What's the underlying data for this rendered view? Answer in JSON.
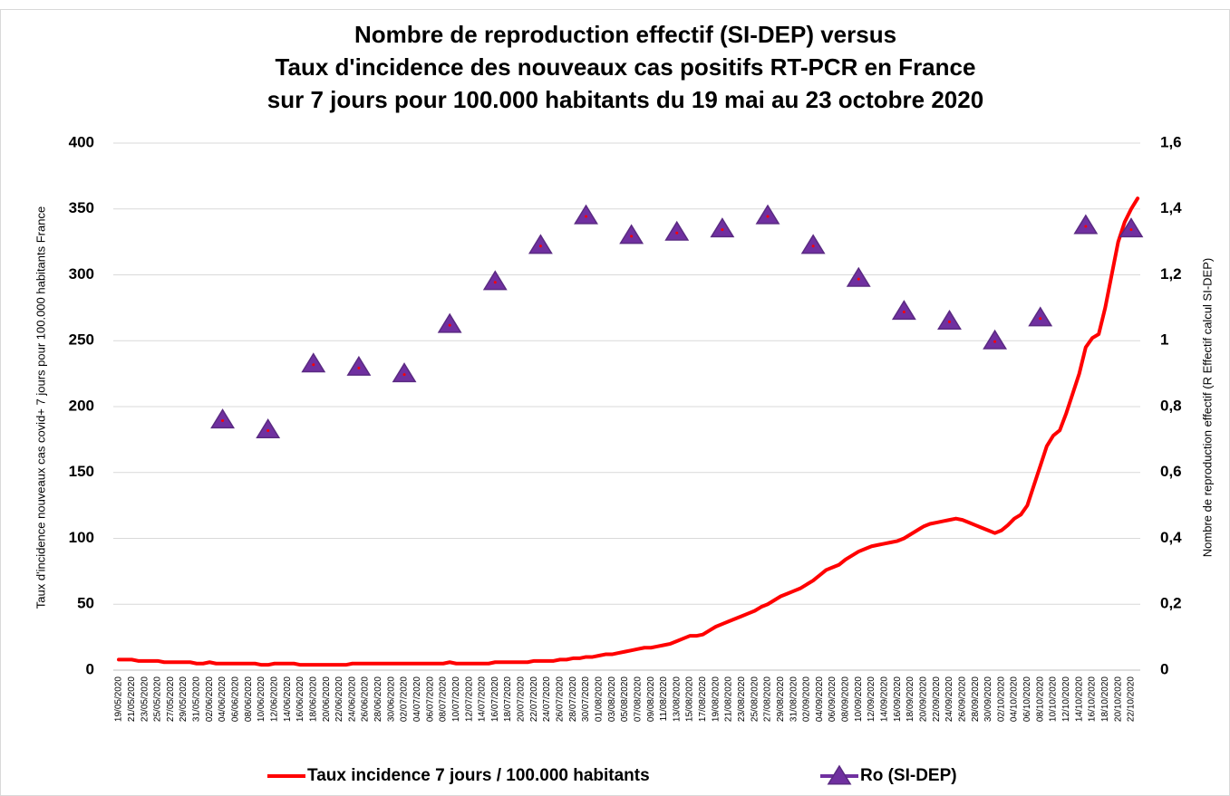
{
  "chart_data": {
    "type": "line",
    "title": [
      "Nombre de reproduction effectif (SI-DEP) versus",
      "Taux d'incidence des nouveaux cas positifs RT-PCR en France",
      "sur 7 jours pour 100.000 habitants du 19 mai au 23 octobre 2020"
    ],
    "ylabel": "Taux d'incidence nouveaux cas covid+ 7 jours pour 100.000 habitants France",
    "y2label": "Nombre de reproduction effectif (R Effectif calcul SI-DEP)",
    "categories": [
      "19/05/2020",
      null,
      "21/05/2020",
      null,
      "23/05/2020",
      null,
      "25/05/2020",
      null,
      "27/05/2020",
      null,
      "29/05/2020",
      null,
      "31/05/2020",
      null,
      "02/06/2020",
      null,
      "04/06/2020",
      null,
      "06/06/2020",
      null,
      "08/06/2020",
      null,
      "10/06/2020",
      null,
      "12/06/2020",
      null,
      "14/06/2020",
      null,
      "16/06/2020",
      null,
      "18/06/2020",
      null,
      "20/06/2020",
      null,
      "22/06/2020",
      null,
      "24/06/2020",
      null,
      "26/06/2020",
      null,
      "28/06/2020",
      null,
      "30/06/2020",
      null,
      "02/07/2020",
      null,
      "04/07/2020",
      null,
      "06/07/2020",
      null,
      "08/07/2020",
      null,
      "10/07/2020",
      null,
      "12/07/2020",
      null,
      "14/07/2020",
      null,
      "16/07/2020",
      null,
      "18/07/2020",
      null,
      "20/07/2020",
      null,
      "22/07/2020",
      null,
      "24/07/2020",
      null,
      "26/07/2020",
      null,
      "28/07/2020",
      null,
      "30/07/2020",
      null,
      "01/08/2020",
      null,
      "03/08/2020",
      null,
      "05/08/2020",
      null,
      "07/08/2020",
      null,
      "09/08/2020",
      null,
      "11/08/2020",
      null,
      "13/08/2020",
      null,
      "15/08/2020",
      null,
      "17/08/2020",
      null,
      "19/08/2020",
      null,
      "21/08/2020",
      null,
      "23/08/2020",
      null,
      "25/08/2020",
      null,
      "27/08/2020",
      null,
      "29/08/2020",
      null,
      "31/08/2020",
      null,
      "02/09/2020",
      null,
      "04/09/2020",
      null,
      "06/09/2020",
      null,
      "08/09/2020",
      null,
      "10/09/2020",
      null,
      "12/09/2020",
      null,
      "14/09/2020",
      null,
      "16/09/2020",
      null,
      "18/09/2020",
      null,
      "20/09/2020",
      null,
      "22/09/2020",
      null,
      "24/09/2020",
      null,
      "26/09/2020",
      null,
      "28/09/2020",
      null,
      "30/09/2020",
      null,
      "02/10/2020",
      null,
      "04/10/2020",
      null,
      "06/10/2020",
      null,
      "08/10/2020",
      null,
      "10/10/2020",
      null,
      "12/10/2020",
      null,
      "14/10/2020",
      null,
      "16/10/2020",
      null,
      "18/10/2020",
      null,
      "20/10/2020",
      null,
      "22/10/2020",
      null
    ],
    "series": [
      {
        "name": "Taux incidence 7 jours / 100.000 habitants",
        "color": "#ff0000",
        "values": [
          8,
          8,
          8,
          7,
          7,
          7,
          7,
          6,
          6,
          6,
          6,
          6,
          5,
          5,
          6,
          5,
          5,
          5,
          5,
          5,
          5,
          5,
          4,
          4,
          5,
          5,
          5,
          5,
          4,
          4,
          4,
          4,
          4,
          4,
          4,
          4,
          5,
          5,
          5,
          5,
          5,
          5,
          5,
          5,
          5,
          5,
          5,
          5,
          5,
          5,
          5,
          6,
          5,
          5,
          5,
          5,
          5,
          5,
          6,
          6,
          6,
          6,
          6,
          6,
          7,
          7,
          7,
          7,
          8,
          8,
          9,
          9,
          10,
          10,
          11,
          12,
          12,
          13,
          14,
          15,
          16,
          17,
          17,
          18,
          19,
          20,
          22,
          24,
          26,
          26,
          27,
          30,
          33,
          35,
          37,
          39,
          41,
          43,
          45,
          48,
          50,
          53,
          56,
          58,
          60,
          62,
          65,
          68,
          72,
          76,
          78,
          80,
          84,
          87,
          90,
          92,
          94,
          95,
          96,
          97,
          98,
          100,
          103,
          106,
          109,
          111,
          112,
          113,
          114,
          115,
          114,
          112,
          110,
          108,
          106,
          104,
          106,
          110,
          115,
          118,
          125,
          140,
          155,
          170,
          178,
          182,
          195,
          210,
          225,
          245,
          252,
          255,
          275,
          300,
          325,
          340,
          350,
          358
        ]
      },
      {
        "name": "Ro (SI-DEP)",
        "color": "#7030a0",
        "axis": "y2",
        "marker": "triangle",
        "values": [
          null,
          null,
          null,
          null,
          null,
          null,
          null,
          null,
          null,
          null,
          null,
          null,
          null,
          null,
          null,
          null,
          0.76,
          null,
          null,
          null,
          null,
          null,
          null,
          0.73,
          null,
          null,
          null,
          null,
          null,
          null,
          0.93,
          null,
          null,
          null,
          null,
          null,
          null,
          0.92,
          null,
          null,
          null,
          null,
          null,
          null,
          0.9,
          null,
          null,
          null,
          null,
          null,
          null,
          1.05,
          null,
          null,
          null,
          null,
          null,
          null,
          1.18,
          null,
          null,
          null,
          null,
          null,
          null,
          1.29,
          null,
          null,
          null,
          null,
          null,
          null,
          1.38,
          null,
          null,
          null,
          null,
          null,
          null,
          1.32,
          null,
          null,
          null,
          null,
          null,
          null,
          1.33,
          null,
          null,
          null,
          null,
          null,
          null,
          1.34,
          null,
          null,
          null,
          null,
          null,
          null,
          1.38,
          null,
          null,
          null,
          null,
          null,
          null,
          1.29,
          null,
          null,
          null,
          null,
          null,
          null,
          1.19,
          null,
          null,
          null,
          null,
          null,
          null,
          1.09,
          null,
          null,
          null,
          null,
          null,
          null,
          1.06,
          null,
          null,
          null,
          null,
          null,
          null,
          1.0,
          null,
          null,
          null,
          null,
          null,
          null,
          1.07,
          null,
          null,
          null,
          null,
          null,
          null,
          1.35,
          null,
          null,
          null,
          null,
          null,
          null,
          1.34,
          null
        ]
      }
    ],
    "ylim": [
      0,
      400
    ],
    "yticks": [
      0,
      50,
      100,
      150,
      200,
      250,
      300,
      350,
      400
    ],
    "y2lim": [
      0,
      1.6
    ],
    "y2ticks": [
      0,
      {
        "value": 0.2,
        "label": "0,2"
      },
      {
        "value": 0.4,
        "label": "0,4"
      },
      {
        "value": 0.6,
        "label": "0,6"
      },
      {
        "value": 0.8,
        "label": "0,8"
      },
      1,
      {
        "value": 1.2,
        "label": "1,2"
      },
      {
        "value": 1.4,
        "label": "1,4"
      },
      {
        "value": 1.6,
        "label": "1,6"
      }
    ],
    "grid": true,
    "legend": "bottom"
  }
}
